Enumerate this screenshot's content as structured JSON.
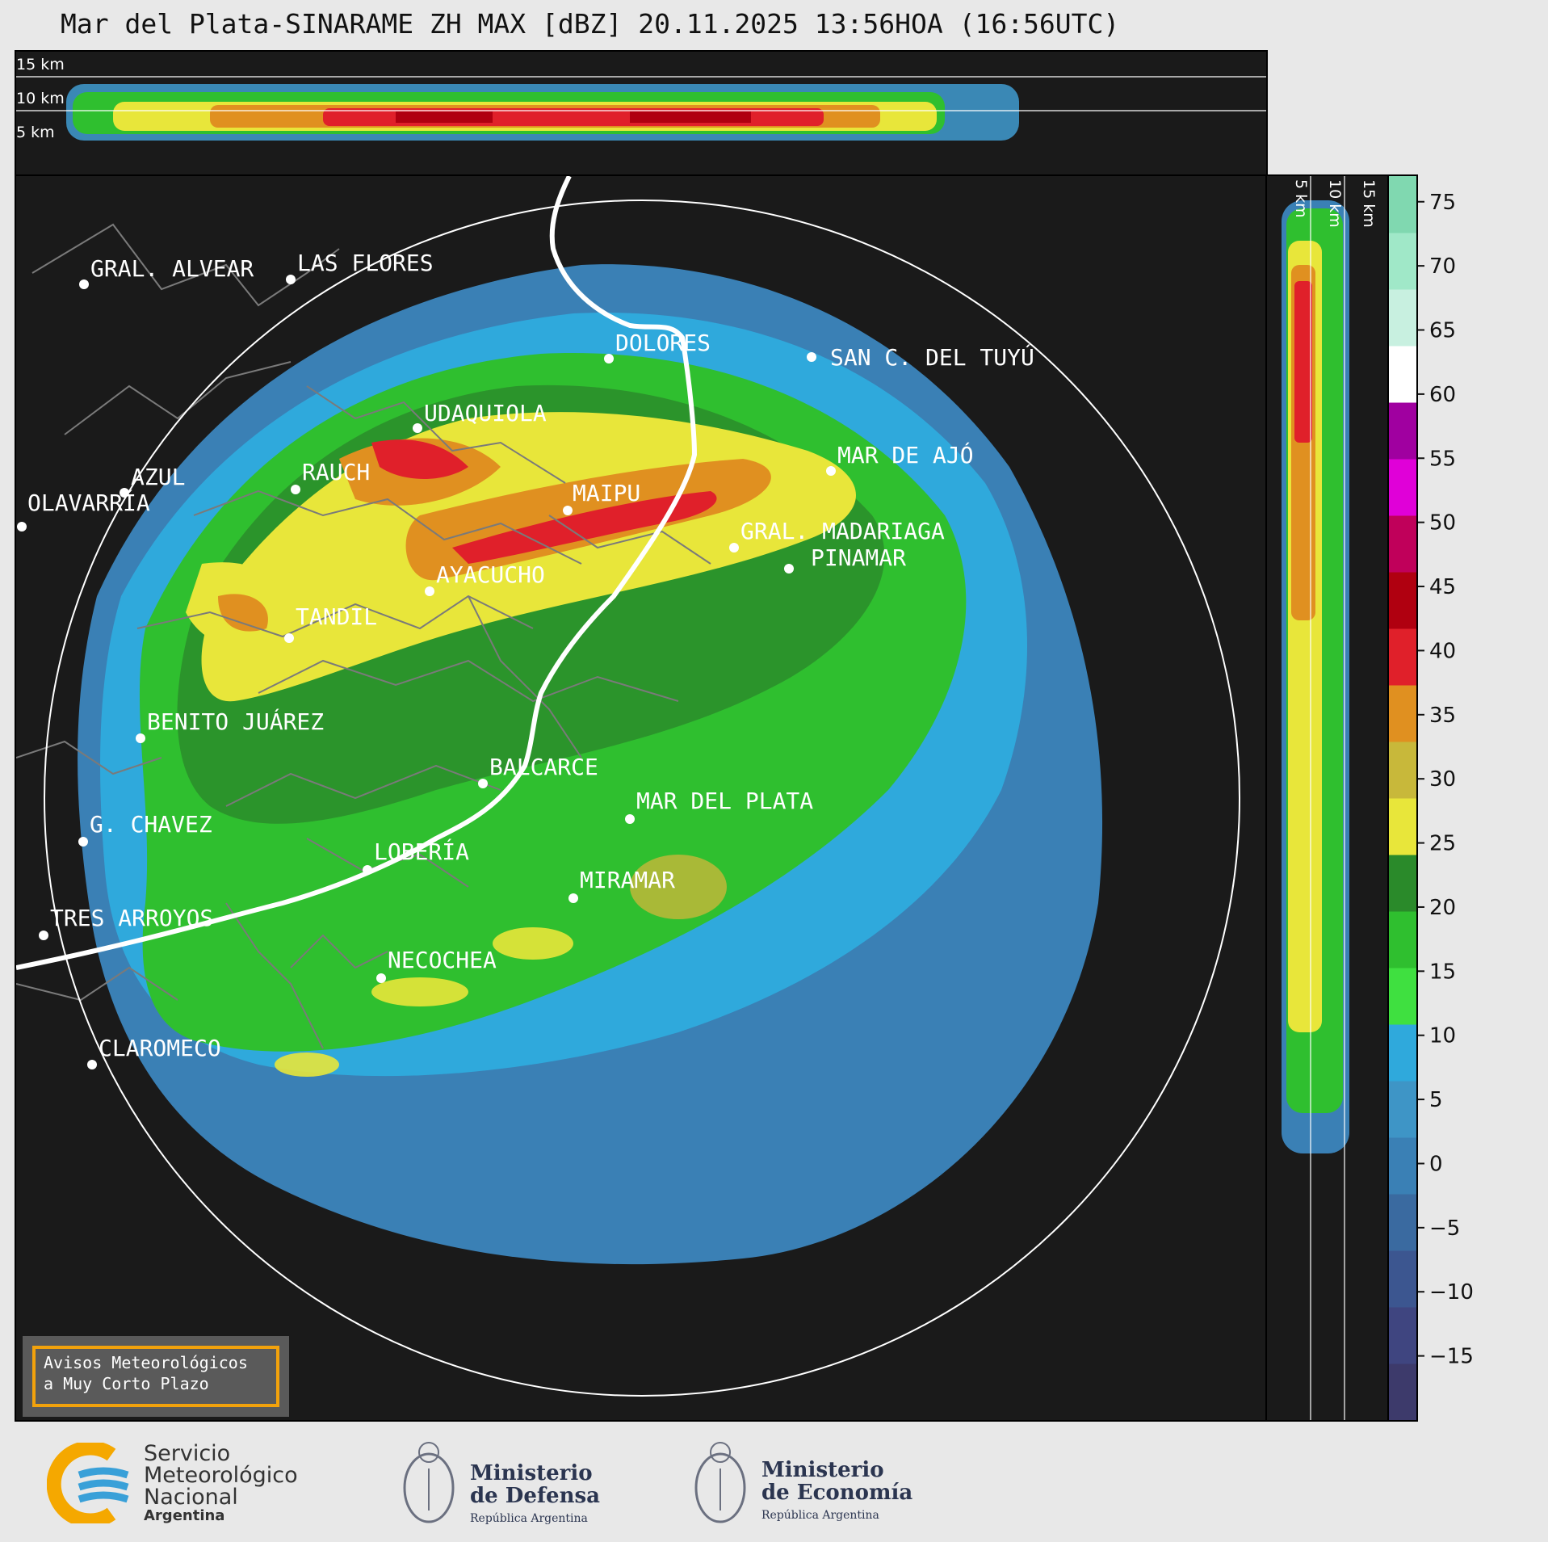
{
  "title": "Mar del Plata-SINARAME ZH MAX [dBZ] 20.11.2025 13:56HOA (16:56UTC)",
  "top_panel": {
    "height_labels": [
      "15 km",
      "10 km",
      "5 km"
    ]
  },
  "side_panel": {
    "height_labels": [
      "5 km",
      "10 km",
      "15 km"
    ]
  },
  "cities": [
    {
      "name": "GRAL. ALVEAR"
    },
    {
      "name": "LAS FLORES"
    },
    {
      "name": "DOLORES"
    },
    {
      "name": "SAN C. DEL TUYÚ"
    },
    {
      "name": "UDAQUIOLA"
    },
    {
      "name": "RAUCH"
    },
    {
      "name": "AZUL"
    },
    {
      "name": "OLAVARRÍA"
    },
    {
      "name": "MAIPU"
    },
    {
      "name": "MAR DE AJÓ"
    },
    {
      "name": "GRAL. MADARIAGA"
    },
    {
      "name": "PINAMAR"
    },
    {
      "name": "AYACUCHO"
    },
    {
      "name": "TANDIL"
    },
    {
      "name": "BENITO JUÁREZ"
    },
    {
      "name": "BALCARCE"
    },
    {
      "name": "MAR DEL PLATA"
    },
    {
      "name": "G. CHAVEZ"
    },
    {
      "name": "LOBERÍA"
    },
    {
      "name": "MIRAMAR"
    },
    {
      "name": "TRES ARROYOS"
    },
    {
      "name": "NECOCHEA"
    },
    {
      "name": "CLAROMECO"
    }
  ],
  "colorbar": {
    "ticks": [
      "75",
      "70",
      "65",
      "60",
      "55",
      "50",
      "45",
      "40",
      "35",
      "30",
      "25",
      "20",
      "15",
      "10",
      "5",
      "0",
      "−5",
      "−10",
      "−15"
    ],
    "range": [
      -20,
      77
    ],
    "colors": {
      "bands": [
        "#3d3a6b",
        "#3f4580",
        "#3c5690",
        "#3a6aa0",
        "#3a80b5",
        "#3e95c6",
        "#2fa9dc",
        "#3fe040",
        "#2fbf2f",
        "#2a8a2a",
        "#e8e63a",
        "#c8b83a",
        "#e09020",
        "#e0202a",
        "#b00010",
        "#c0005a",
        "#e000d8",
        "#a000a0",
        "#ffffff",
        "#c8f0e0",
        "#a0e8c8",
        "#80d8b0"
      ]
    }
  },
  "warning_box": {
    "line1": "Avisos Meteorológicos",
    "line2": "a Muy Corto Plazo",
    "border_color": "#f2a20c"
  },
  "footer": {
    "smn": {
      "line1": "Servicio",
      "line2": "Meteorológico",
      "line3": "Nacional",
      "line4": "Argentina"
    },
    "defensa": {
      "line1": "Ministerio",
      "line2": "de Defensa",
      "line3": "República Argentina"
    },
    "economia": {
      "line1": "Ministerio",
      "line2": "de Economía",
      "line3": "República Argentina"
    }
  }
}
